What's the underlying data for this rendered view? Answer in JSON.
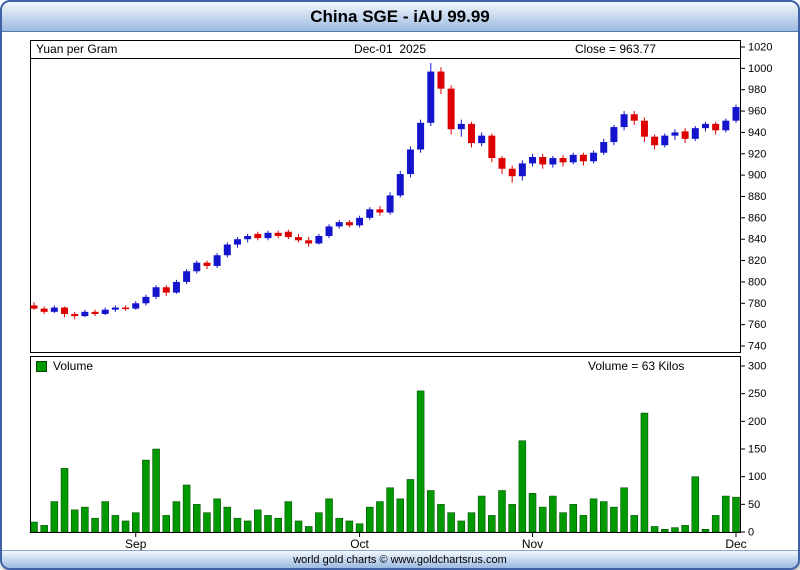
{
  "window": {
    "title": "China SGE - iAU 99.99",
    "footer": "world gold charts © www.goldchartsrus.com",
    "accent_border": "#3f62a6"
  },
  "price_panel": {
    "unit_label": "Yuan per Gram",
    "date_label": "Dec-01  2025",
    "close_label": "Close = 963.77"
  },
  "volume_panel": {
    "legend_label": "Volume",
    "value_label": "Volume = 63 Kilos"
  },
  "chart_data": {
    "type": "candlestick+volume",
    "title": "China SGE - iAU 99.99",
    "unit": "Yuan per Gram",
    "last_date": "Dec-01 2025",
    "close": 963.77,
    "volume_kilos": 63,
    "price_axis": {
      "side": "right",
      "min": 740,
      "max": 1020,
      "ticks": [
        1020,
        1000,
        980,
        960,
        940,
        920,
        900,
        880,
        860,
        840,
        820,
        800,
        780,
        760,
        740
      ]
    },
    "volume_axis": {
      "side": "right",
      "min": 0,
      "max": 300,
      "ticks": [
        300,
        250,
        200,
        150,
        100,
        50,
        0
      ]
    },
    "months": [
      {
        "label": "Sep",
        "index": 10
      },
      {
        "label": "Oct",
        "index": 32
      },
      {
        "label": "Nov",
        "index": 49
      },
      {
        "label": "Dec",
        "index": 69
      }
    ],
    "colors": {
      "up": "#1414cc",
      "down": "#dd0000",
      "volume": "#009900",
      "volume_edge": "#004400"
    },
    "candle_format": [
      "open",
      "high",
      "low",
      "close",
      "volume"
    ],
    "candles": [
      [
        778,
        781,
        774,
        775,
        18
      ],
      [
        775,
        777,
        770,
        772,
        12
      ],
      [
        772,
        778,
        771,
        776,
        55
      ],
      [
        776,
        777,
        767,
        770,
        115
      ],
      [
        770,
        772,
        765,
        768,
        40
      ],
      [
        768,
        774,
        767,
        772,
        45
      ],
      [
        772,
        774,
        768,
        770,
        25
      ],
      [
        770,
        776,
        769,
        774,
        55
      ],
      [
        774,
        778,
        772,
        776,
        30
      ],
      [
        776,
        778,
        773,
        775,
        20
      ],
      [
        775,
        782,
        774,
        780,
        35
      ],
      [
        780,
        788,
        778,
        786,
        130
      ],
      [
        786,
        797,
        784,
        795,
        150
      ],
      [
        795,
        797,
        787,
        790,
        30
      ],
      [
        790,
        802,
        789,
        800,
        55
      ],
      [
        800,
        812,
        798,
        810,
        85
      ],
      [
        810,
        820,
        808,
        818,
        50
      ],
      [
        818,
        820,
        812,
        815,
        35
      ],
      [
        815,
        827,
        813,
        825,
        60
      ],
      [
        825,
        837,
        823,
        835,
        45
      ],
      [
        835,
        842,
        832,
        840,
        25
      ],
      [
        840,
        845,
        837,
        843,
        20
      ],
      [
        845,
        847,
        839,
        841,
        40
      ],
      [
        841,
        848,
        839,
        846,
        30
      ],
      [
        846,
        848,
        841,
        843,
        25
      ],
      [
        847,
        849,
        840,
        842,
        55
      ],
      [
        842,
        845,
        837,
        839,
        20
      ],
      [
        839,
        842,
        833,
        836,
        10
      ],
      [
        836,
        845,
        835,
        843,
        35
      ],
      [
        843,
        854,
        841,
        852,
        60
      ],
      [
        852,
        858,
        850,
        856,
        25
      ],
      [
        856,
        858,
        851,
        853,
        20
      ],
      [
        853,
        862,
        851,
        860,
        15
      ],
      [
        860,
        870,
        858,
        868,
        45
      ],
      [
        868,
        871,
        862,
        865,
        55
      ],
      [
        865,
        884,
        863,
        881,
        80
      ],
      [
        881,
        904,
        879,
        901,
        60
      ],
      [
        901,
        927,
        898,
        924,
        95
      ],
      [
        924,
        952,
        921,
        949,
        255
      ],
      [
        949,
        1005,
        946,
        997,
        75
      ],
      [
        997,
        1001,
        976,
        981,
        50
      ],
      [
        981,
        984,
        938,
        943,
        35
      ],
      [
        943,
        952,
        936,
        948,
        20
      ],
      [
        948,
        950,
        926,
        930,
        35
      ],
      [
        930,
        940,
        927,
        937,
        65
      ],
      [
        937,
        939,
        912,
        916,
        30
      ],
      [
        916,
        918,
        901,
        906,
        75
      ],
      [
        906,
        909,
        893,
        899,
        50
      ],
      [
        899,
        914,
        895,
        911,
        165
      ],
      [
        911,
        920,
        908,
        917,
        70
      ],
      [
        917,
        920,
        906,
        910,
        45
      ],
      [
        910,
        918,
        907,
        916,
        65
      ],
      [
        916,
        919,
        908,
        912,
        35
      ],
      [
        912,
        921,
        910,
        919,
        50
      ],
      [
        919,
        921,
        909,
        913,
        30
      ],
      [
        913,
        923,
        911,
        921,
        60
      ],
      [
        921,
        934,
        919,
        931,
        55
      ],
      [
        931,
        947,
        928,
        945,
        45
      ],
      [
        945,
        960,
        942,
        957,
        80
      ],
      [
        957,
        960,
        947,
        951,
        30
      ],
      [
        951,
        954,
        931,
        936,
        215
      ],
      [
        936,
        938,
        924,
        928,
        10
      ],
      [
        928,
        939,
        926,
        937,
        5
      ],
      [
        937,
        943,
        933,
        940,
        8
      ],
      [
        941,
        944,
        930,
        934,
        12
      ],
      [
        934,
        946,
        932,
        944,
        100
      ],
      [
        944,
        950,
        941,
        948,
        5
      ],
      [
        948,
        950,
        938,
        942,
        30
      ],
      [
        942,
        953,
        940,
        951,
        65
      ],
      [
        951,
        966,
        949,
        963.77,
        63
      ]
    ]
  }
}
